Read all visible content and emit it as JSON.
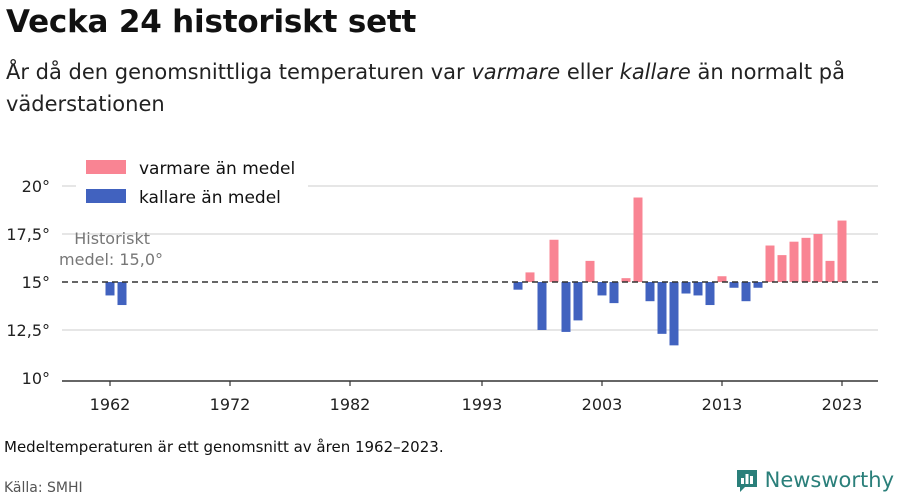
{
  "header": {
    "title": "Vecka 24 historiskt sett",
    "subtitle_1": "År då den genomsnittliga temperaturen var ",
    "subtitle_warm": "varmare",
    "subtitle_2": " eller ",
    "subtitle_cold": "kallare",
    "subtitle_3": " än normalt på väderstationen"
  },
  "footer": {
    "note": "Medeltemperaturen är ett genomsnitt av åren 1962–2023.",
    "source": "Källa: SMHI",
    "brand": "Newsworthy"
  },
  "colors": {
    "warm": "#f98493",
    "cold": "#4162bf",
    "grid": "#dddddd",
    "axis": "#333333",
    "reference": "#333333",
    "brand": "#2a7f7a"
  },
  "chart_data": {
    "type": "bar",
    "baseline": 15.0,
    "x_range": [
      1958,
      2026
    ],
    "ylim": [
      10,
      20
    ],
    "y_ticks": [
      20,
      17.5,
      15,
      12.5,
      10
    ],
    "y_tick_labels": [
      "20°",
      "17,5°",
      "15°",
      "12,5°",
      "10°"
    ],
    "x_ticks": [
      1962,
      1972,
      1982,
      1993,
      2003,
      2013,
      2023
    ],
    "x_tick_labels": [
      "1962",
      "1972",
      "1982",
      "1993",
      "2003",
      "2013",
      "2023"
    ],
    "grid": "horizontal",
    "legend_position": "top-left",
    "legend": [
      {
        "key": "warm",
        "label": "varmare än medel"
      },
      {
        "key": "cold",
        "label": "kallare än medel"
      }
    ],
    "annotation": {
      "line1": "Historiskt",
      "line2": "medel: 15,0°"
    },
    "years": [
      1962,
      1963,
      1996,
      1997,
      1998,
      1999,
      2000,
      2001,
      2002,
      2003,
      2004,
      2005,
      2006,
      2007,
      2008,
      2009,
      2010,
      2011,
      2012,
      2013,
      2014,
      2015,
      2016,
      2017,
      2018,
      2019,
      2020,
      2021,
      2022,
      2023
    ],
    "values": [
      14.3,
      13.8,
      14.6,
      15.5,
      12.5,
      17.2,
      12.4,
      13.0,
      16.1,
      14.3,
      13.9,
      15.2,
      19.4,
      14.0,
      12.3,
      11.7,
      14.4,
      14.3,
      13.8,
      15.3,
      14.7,
      14.0,
      14.7,
      16.9,
      16.4,
      17.1,
      17.3,
      17.5,
      16.1,
      18.2
    ]
  }
}
